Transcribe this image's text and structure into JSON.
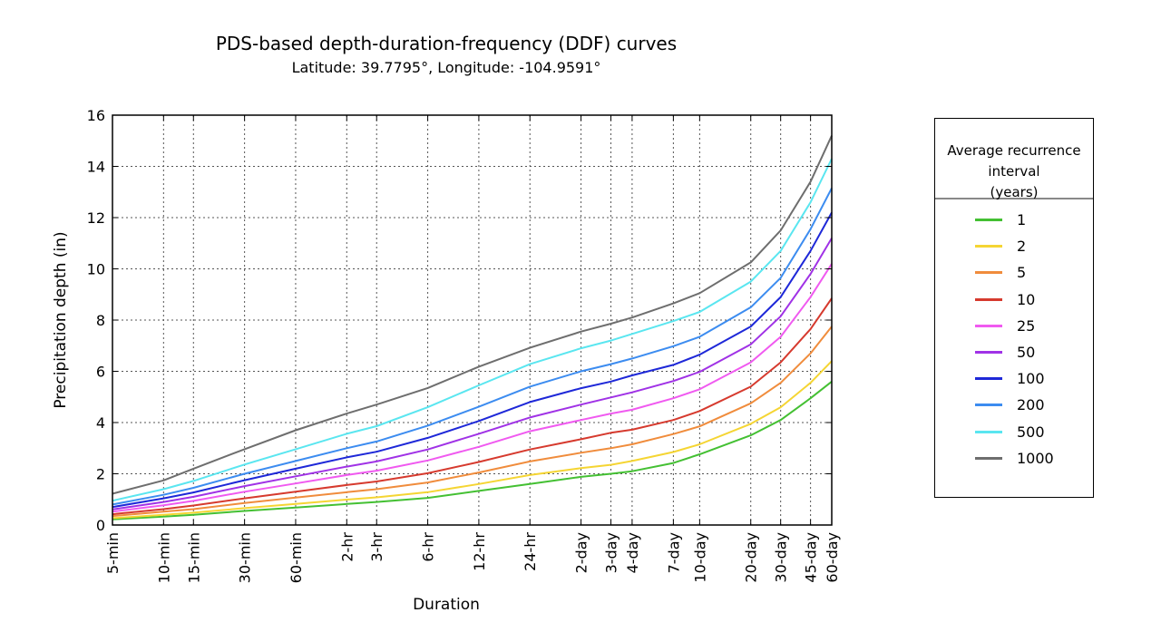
{
  "chart_data": {
    "type": "line",
    "title": "PDS-based depth-duration-frequency (DDF) curves",
    "subtitle": "Latitude: 39.7795°, Longitude: -104.9591°",
    "xlabel": "Duration",
    "ylabel": "Precipitation depth (in)",
    "ylim": [
      0,
      16
    ],
    "yticks": [
      "0",
      "2",
      "4",
      "6",
      "8",
      "10",
      "12",
      "14",
      "16"
    ],
    "grid": true,
    "x_log_minutes": [
      5,
      10,
      15,
      30,
      60,
      120,
      180,
      360,
      720,
      1440,
      2880,
      4320,
      5760,
      10080,
      14400,
      28800,
      43200,
      64800,
      86400
    ],
    "categories": [
      "5-min",
      "10-min",
      "15-min",
      "30-min",
      "60-min",
      "2-hr",
      "3-hr",
      "6-hr",
      "12-hr",
      "24-hr",
      "2-day",
      "3-day",
      "4-day",
      "7-day",
      "10-day",
      "20-day",
      "30-day",
      "45-day",
      "60-day"
    ],
    "series": [
      {
        "name": "1",
        "color": "#44c033",
        "values": [
          0.22,
          0.33,
          0.4,
          0.55,
          0.68,
          0.82,
          0.9,
          1.06,
          1.33,
          1.6,
          1.88,
          2.0,
          2.1,
          2.42,
          2.76,
          3.5,
          4.1,
          4.95,
          5.6
        ]
      },
      {
        "name": "2",
        "color": "#f5d533",
        "values": [
          0.27,
          0.4,
          0.48,
          0.66,
          0.82,
          0.99,
          1.08,
          1.28,
          1.6,
          1.95,
          2.22,
          2.35,
          2.5,
          2.85,
          3.15,
          3.95,
          4.6,
          5.55,
          6.4
        ]
      },
      {
        "name": "5",
        "color": "#f08c3c",
        "values": [
          0.35,
          0.52,
          0.62,
          0.86,
          1.07,
          1.28,
          1.4,
          1.66,
          2.05,
          2.48,
          2.82,
          3.0,
          3.15,
          3.55,
          3.85,
          4.75,
          5.55,
          6.7,
          7.75
        ]
      },
      {
        "name": "10",
        "color": "#d63a2e",
        "values": [
          0.42,
          0.62,
          0.76,
          1.04,
          1.3,
          1.56,
          1.7,
          2.02,
          2.46,
          2.95,
          3.35,
          3.6,
          3.72,
          4.1,
          4.45,
          5.4,
          6.35,
          7.65,
          8.85
        ]
      },
      {
        "name": "25",
        "color": "#f05af0",
        "values": [
          0.52,
          0.77,
          0.94,
          1.3,
          1.62,
          1.95,
          2.12,
          2.52,
          3.05,
          3.66,
          4.1,
          4.35,
          4.5,
          4.95,
          5.3,
          6.35,
          7.35,
          8.9,
          10.2
        ]
      },
      {
        "name": "50",
        "color": "#a032e6",
        "values": [
          0.61,
          0.9,
          1.1,
          1.52,
          1.9,
          2.28,
          2.48,
          2.95,
          3.56,
          4.2,
          4.7,
          4.98,
          5.18,
          5.62,
          5.98,
          7.05,
          8.15,
          9.8,
          11.2
        ]
      },
      {
        "name": "100",
        "color": "#1e28d8",
        "values": [
          0.7,
          1.04,
          1.27,
          1.75,
          2.2,
          2.64,
          2.86,
          3.4,
          4.06,
          4.8,
          5.34,
          5.6,
          5.84,
          6.25,
          6.65,
          7.75,
          8.9,
          10.7,
          12.2
        ]
      },
      {
        "name": "200",
        "color": "#3c8cf0",
        "values": [
          0.8,
          1.18,
          1.45,
          2.0,
          2.5,
          3.0,
          3.26,
          3.88,
          4.62,
          5.4,
          6.0,
          6.28,
          6.5,
          6.98,
          7.35,
          8.5,
          9.65,
          11.55,
          13.15
        ]
      },
      {
        "name": "500",
        "color": "#5ae6f0",
        "values": [
          0.95,
          1.4,
          1.72,
          2.36,
          2.96,
          3.56,
          3.86,
          4.6,
          5.45,
          6.28,
          6.9,
          7.2,
          7.46,
          7.96,
          8.32,
          9.5,
          10.7,
          12.6,
          14.3
        ]
      },
      {
        "name": "1000",
        "color": "#6e6e6e",
        "values": [
          1.22,
          1.74,
          2.2,
          2.96,
          3.7,
          4.35,
          4.7,
          5.35,
          6.18,
          6.92,
          7.55,
          7.86,
          8.1,
          8.65,
          9.05,
          10.25,
          11.5,
          13.4,
          15.2
        ]
      }
    ]
  },
  "legend": {
    "title": "Average recurrence\ninterval\n(years)"
  }
}
